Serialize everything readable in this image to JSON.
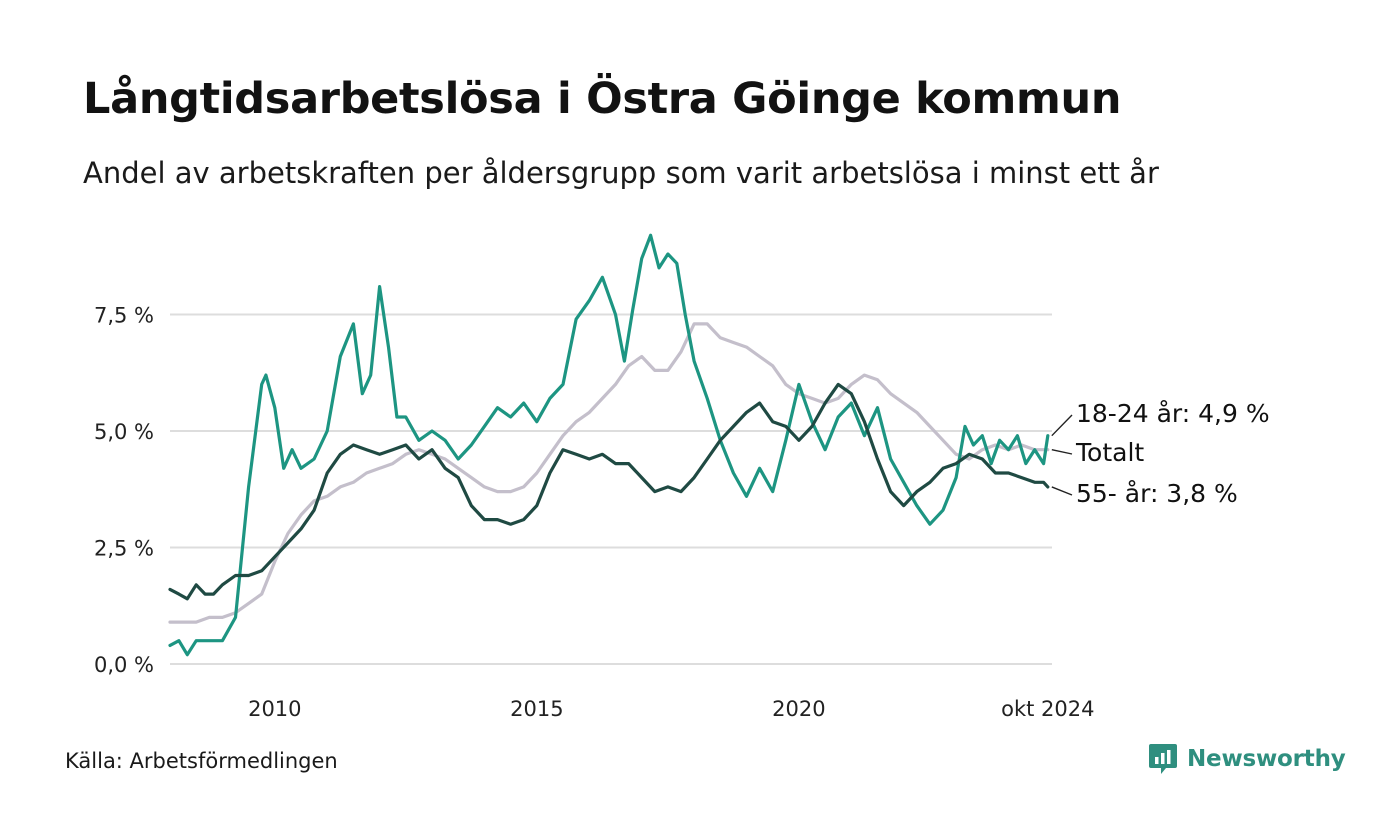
{
  "title": "Långtidsarbetslösa i Östra Göinge kommun",
  "subtitle": "Andel av arbetskraften per åldersgrupp som varit arbetslösa i minst ett år",
  "source": "Källa: Arbetsförmedlingen",
  "brand": {
    "name": "Newsworthy",
    "icon": "bar-chart-logo-icon",
    "color": "#2f8f7f"
  },
  "chart_data": {
    "type": "line",
    "title": "Långtidsarbetslösa i Östra Göinge kommun",
    "subtitle": "Andel av arbetskraften per åldersgrupp som varit arbetslösa i minst ett år",
    "xlim": [
      2008.0,
      2024.83
    ],
    "ylim": [
      0,
      9.4
    ],
    "grid": true,
    "x_ticks": [
      {
        "value": 2010,
        "label": "2010"
      },
      {
        "value": 2015,
        "label": "2015"
      },
      {
        "value": 2020,
        "label": "2020"
      },
      {
        "value": 2024.75,
        "label": "okt 2024"
      }
    ],
    "y_ticks": [
      {
        "value": 0,
        "label": "0,0 %"
      },
      {
        "value": 2.5,
        "label": "2,5 %"
      },
      {
        "value": 5.0,
        "label": "5,0 %"
      },
      {
        "value": 7.5,
        "label": "7,5 %"
      }
    ],
    "series": [
      {
        "name": "Totalt",
        "label": "Totalt",
        "color": "#c4bfcb",
        "points": [
          [
            2008.0,
            0.9
          ],
          [
            2008.25,
            0.9
          ],
          [
            2008.5,
            0.9
          ],
          [
            2008.75,
            1.0
          ],
          [
            2009.0,
            1.0
          ],
          [
            2009.25,
            1.1
          ],
          [
            2009.5,
            1.3
          ],
          [
            2009.75,
            1.5
          ],
          [
            2010.0,
            2.2
          ],
          [
            2010.25,
            2.8
          ],
          [
            2010.5,
            3.2
          ],
          [
            2010.75,
            3.5
          ],
          [
            2011.0,
            3.6
          ],
          [
            2011.25,
            3.8
          ],
          [
            2011.5,
            3.9
          ],
          [
            2011.75,
            4.1
          ],
          [
            2012.0,
            4.2
          ],
          [
            2012.25,
            4.3
          ],
          [
            2012.5,
            4.5
          ],
          [
            2012.75,
            4.6
          ],
          [
            2013.0,
            4.5
          ],
          [
            2013.25,
            4.4
          ],
          [
            2013.5,
            4.2
          ],
          [
            2013.75,
            4.0
          ],
          [
            2014.0,
            3.8
          ],
          [
            2014.25,
            3.7
          ],
          [
            2014.5,
            3.7
          ],
          [
            2014.75,
            3.8
          ],
          [
            2015.0,
            4.1
          ],
          [
            2015.25,
            4.5
          ],
          [
            2015.5,
            4.9
          ],
          [
            2015.75,
            5.2
          ],
          [
            2016.0,
            5.4
          ],
          [
            2016.25,
            5.7
          ],
          [
            2016.5,
            6.0
          ],
          [
            2016.75,
            6.4
          ],
          [
            2017.0,
            6.6
          ],
          [
            2017.25,
            6.3
          ],
          [
            2017.5,
            6.3
          ],
          [
            2017.75,
            6.7
          ],
          [
            2018.0,
            7.3
          ],
          [
            2018.25,
            7.3
          ],
          [
            2018.5,
            7.0
          ],
          [
            2018.75,
            6.9
          ],
          [
            2019.0,
            6.8
          ],
          [
            2019.25,
            6.6
          ],
          [
            2019.5,
            6.4
          ],
          [
            2019.75,
            6.0
          ],
          [
            2020.0,
            5.8
          ],
          [
            2020.25,
            5.7
          ],
          [
            2020.5,
            5.6
          ],
          [
            2020.75,
            5.7
          ],
          [
            2021.0,
            6.0
          ],
          [
            2021.25,
            6.2
          ],
          [
            2021.5,
            6.1
          ],
          [
            2021.75,
            5.8
          ],
          [
            2022.0,
            5.6
          ],
          [
            2022.25,
            5.4
          ],
          [
            2022.5,
            5.1
          ],
          [
            2022.75,
            4.8
          ],
          [
            2023.0,
            4.5
          ],
          [
            2023.25,
            4.4
          ],
          [
            2023.5,
            4.6
          ],
          [
            2023.75,
            4.7
          ],
          [
            2024.0,
            4.6
          ],
          [
            2024.25,
            4.7
          ],
          [
            2024.5,
            4.6
          ],
          [
            2024.75,
            4.6
          ]
        ]
      },
      {
        "name": "18-24 år",
        "label": "18-24 år: 4,9 %",
        "color": "#1d9582",
        "points": [
          [
            2008.0,
            0.4
          ],
          [
            2008.17,
            0.5
          ],
          [
            2008.33,
            0.2
          ],
          [
            2008.5,
            0.5
          ],
          [
            2008.75,
            0.5
          ],
          [
            2009.0,
            0.5
          ],
          [
            2009.25,
            1.0
          ],
          [
            2009.5,
            3.8
          ],
          [
            2009.75,
            6.0
          ],
          [
            2009.83,
            6.2
          ],
          [
            2010.0,
            5.5
          ],
          [
            2010.17,
            4.2
          ],
          [
            2010.33,
            4.6
          ],
          [
            2010.5,
            4.2
          ],
          [
            2010.75,
            4.4
          ],
          [
            2011.0,
            5.0
          ],
          [
            2011.25,
            6.6
          ],
          [
            2011.5,
            7.3
          ],
          [
            2011.67,
            5.8
          ],
          [
            2011.83,
            6.2
          ],
          [
            2012.0,
            8.1
          ],
          [
            2012.17,
            6.8
          ],
          [
            2012.33,
            5.3
          ],
          [
            2012.5,
            5.3
          ],
          [
            2012.75,
            4.8
          ],
          [
            2013.0,
            5.0
          ],
          [
            2013.25,
            4.8
          ],
          [
            2013.5,
            4.4
          ],
          [
            2013.75,
            4.7
          ],
          [
            2014.0,
            5.1
          ],
          [
            2014.25,
            5.5
          ],
          [
            2014.5,
            5.3
          ],
          [
            2014.75,
            5.6
          ],
          [
            2015.0,
            5.2
          ],
          [
            2015.25,
            5.7
          ],
          [
            2015.5,
            6.0
          ],
          [
            2015.75,
            7.4
          ],
          [
            2016.0,
            7.8
          ],
          [
            2016.25,
            8.3
          ],
          [
            2016.5,
            7.5
          ],
          [
            2016.67,
            6.5
          ],
          [
            2016.83,
            7.6
          ],
          [
            2017.0,
            8.7
          ],
          [
            2017.17,
            9.2
          ],
          [
            2017.33,
            8.5
          ],
          [
            2017.5,
            8.8
          ],
          [
            2017.67,
            8.6
          ],
          [
            2017.83,
            7.5
          ],
          [
            2018.0,
            6.5
          ],
          [
            2018.25,
            5.7
          ],
          [
            2018.5,
            4.8
          ],
          [
            2018.75,
            4.1
          ],
          [
            2019.0,
            3.6
          ],
          [
            2019.25,
            4.2
          ],
          [
            2019.5,
            3.7
          ],
          [
            2019.75,
            4.8
          ],
          [
            2020.0,
            6.0
          ],
          [
            2020.25,
            5.2
          ],
          [
            2020.5,
            4.6
          ],
          [
            2020.75,
            5.3
          ],
          [
            2021.0,
            5.6
          ],
          [
            2021.25,
            4.9
          ],
          [
            2021.5,
            5.5
          ],
          [
            2021.75,
            4.4
          ],
          [
            2022.0,
            3.9
          ],
          [
            2022.25,
            3.4
          ],
          [
            2022.5,
            3.0
          ],
          [
            2022.75,
            3.3
          ],
          [
            2023.0,
            4.0
          ],
          [
            2023.17,
            5.1
          ],
          [
            2023.33,
            4.7
          ],
          [
            2023.5,
            4.9
          ],
          [
            2023.67,
            4.3
          ],
          [
            2023.83,
            4.8
          ],
          [
            2024.0,
            4.6
          ],
          [
            2024.17,
            4.9
          ],
          [
            2024.33,
            4.3
          ],
          [
            2024.5,
            4.6
          ],
          [
            2024.67,
            4.3
          ],
          [
            2024.75,
            4.9
          ]
        ]
      },
      {
        "name": "55- år",
        "label": "55- år: 3,8 %",
        "color": "#1f4a43",
        "points": [
          [
            2008.0,
            1.6
          ],
          [
            2008.17,
            1.5
          ],
          [
            2008.33,
            1.4
          ],
          [
            2008.5,
            1.7
          ],
          [
            2008.67,
            1.5
          ],
          [
            2008.83,
            1.5
          ],
          [
            2009.0,
            1.7
          ],
          [
            2009.25,
            1.9
          ],
          [
            2009.5,
            1.9
          ],
          [
            2009.75,
            2.0
          ],
          [
            2010.0,
            2.3
          ],
          [
            2010.25,
            2.6
          ],
          [
            2010.5,
            2.9
          ],
          [
            2010.75,
            3.3
          ],
          [
            2011.0,
            4.1
          ],
          [
            2011.25,
            4.5
          ],
          [
            2011.5,
            4.7
          ],
          [
            2011.75,
            4.6
          ],
          [
            2012.0,
            4.5
          ],
          [
            2012.25,
            4.6
          ],
          [
            2012.5,
            4.7
          ],
          [
            2012.75,
            4.4
          ],
          [
            2013.0,
            4.6
          ],
          [
            2013.25,
            4.2
          ],
          [
            2013.5,
            4.0
          ],
          [
            2013.75,
            3.4
          ],
          [
            2014.0,
            3.1
          ],
          [
            2014.25,
            3.1
          ],
          [
            2014.5,
            3.0
          ],
          [
            2014.75,
            3.1
          ],
          [
            2015.0,
            3.4
          ],
          [
            2015.25,
            4.1
          ],
          [
            2015.5,
            4.6
          ],
          [
            2015.75,
            4.5
          ],
          [
            2016.0,
            4.4
          ],
          [
            2016.25,
            4.5
          ],
          [
            2016.5,
            4.3
          ],
          [
            2016.75,
            4.3
          ],
          [
            2017.0,
            4.0
          ],
          [
            2017.25,
            3.7
          ],
          [
            2017.5,
            3.8
          ],
          [
            2017.75,
            3.7
          ],
          [
            2018.0,
            4.0
          ],
          [
            2018.25,
            4.4
          ],
          [
            2018.5,
            4.8
          ],
          [
            2018.75,
            5.1
          ],
          [
            2019.0,
            5.4
          ],
          [
            2019.25,
            5.6
          ],
          [
            2019.5,
            5.2
          ],
          [
            2019.75,
            5.1
          ],
          [
            2020.0,
            4.8
          ],
          [
            2020.25,
            5.1
          ],
          [
            2020.5,
            5.6
          ],
          [
            2020.75,
            6.0
          ],
          [
            2021.0,
            5.8
          ],
          [
            2021.25,
            5.2
          ],
          [
            2021.5,
            4.4
          ],
          [
            2021.75,
            3.7
          ],
          [
            2022.0,
            3.4
          ],
          [
            2022.25,
            3.7
          ],
          [
            2022.5,
            3.9
          ],
          [
            2022.75,
            4.2
          ],
          [
            2023.0,
            4.3
          ],
          [
            2023.25,
            4.5
          ],
          [
            2023.5,
            4.4
          ],
          [
            2023.75,
            4.1
          ],
          [
            2024.0,
            4.1
          ],
          [
            2024.25,
            4.0
          ],
          [
            2024.5,
            3.9
          ],
          [
            2024.67,
            3.9
          ],
          [
            2024.75,
            3.8
          ]
        ]
      }
    ]
  }
}
